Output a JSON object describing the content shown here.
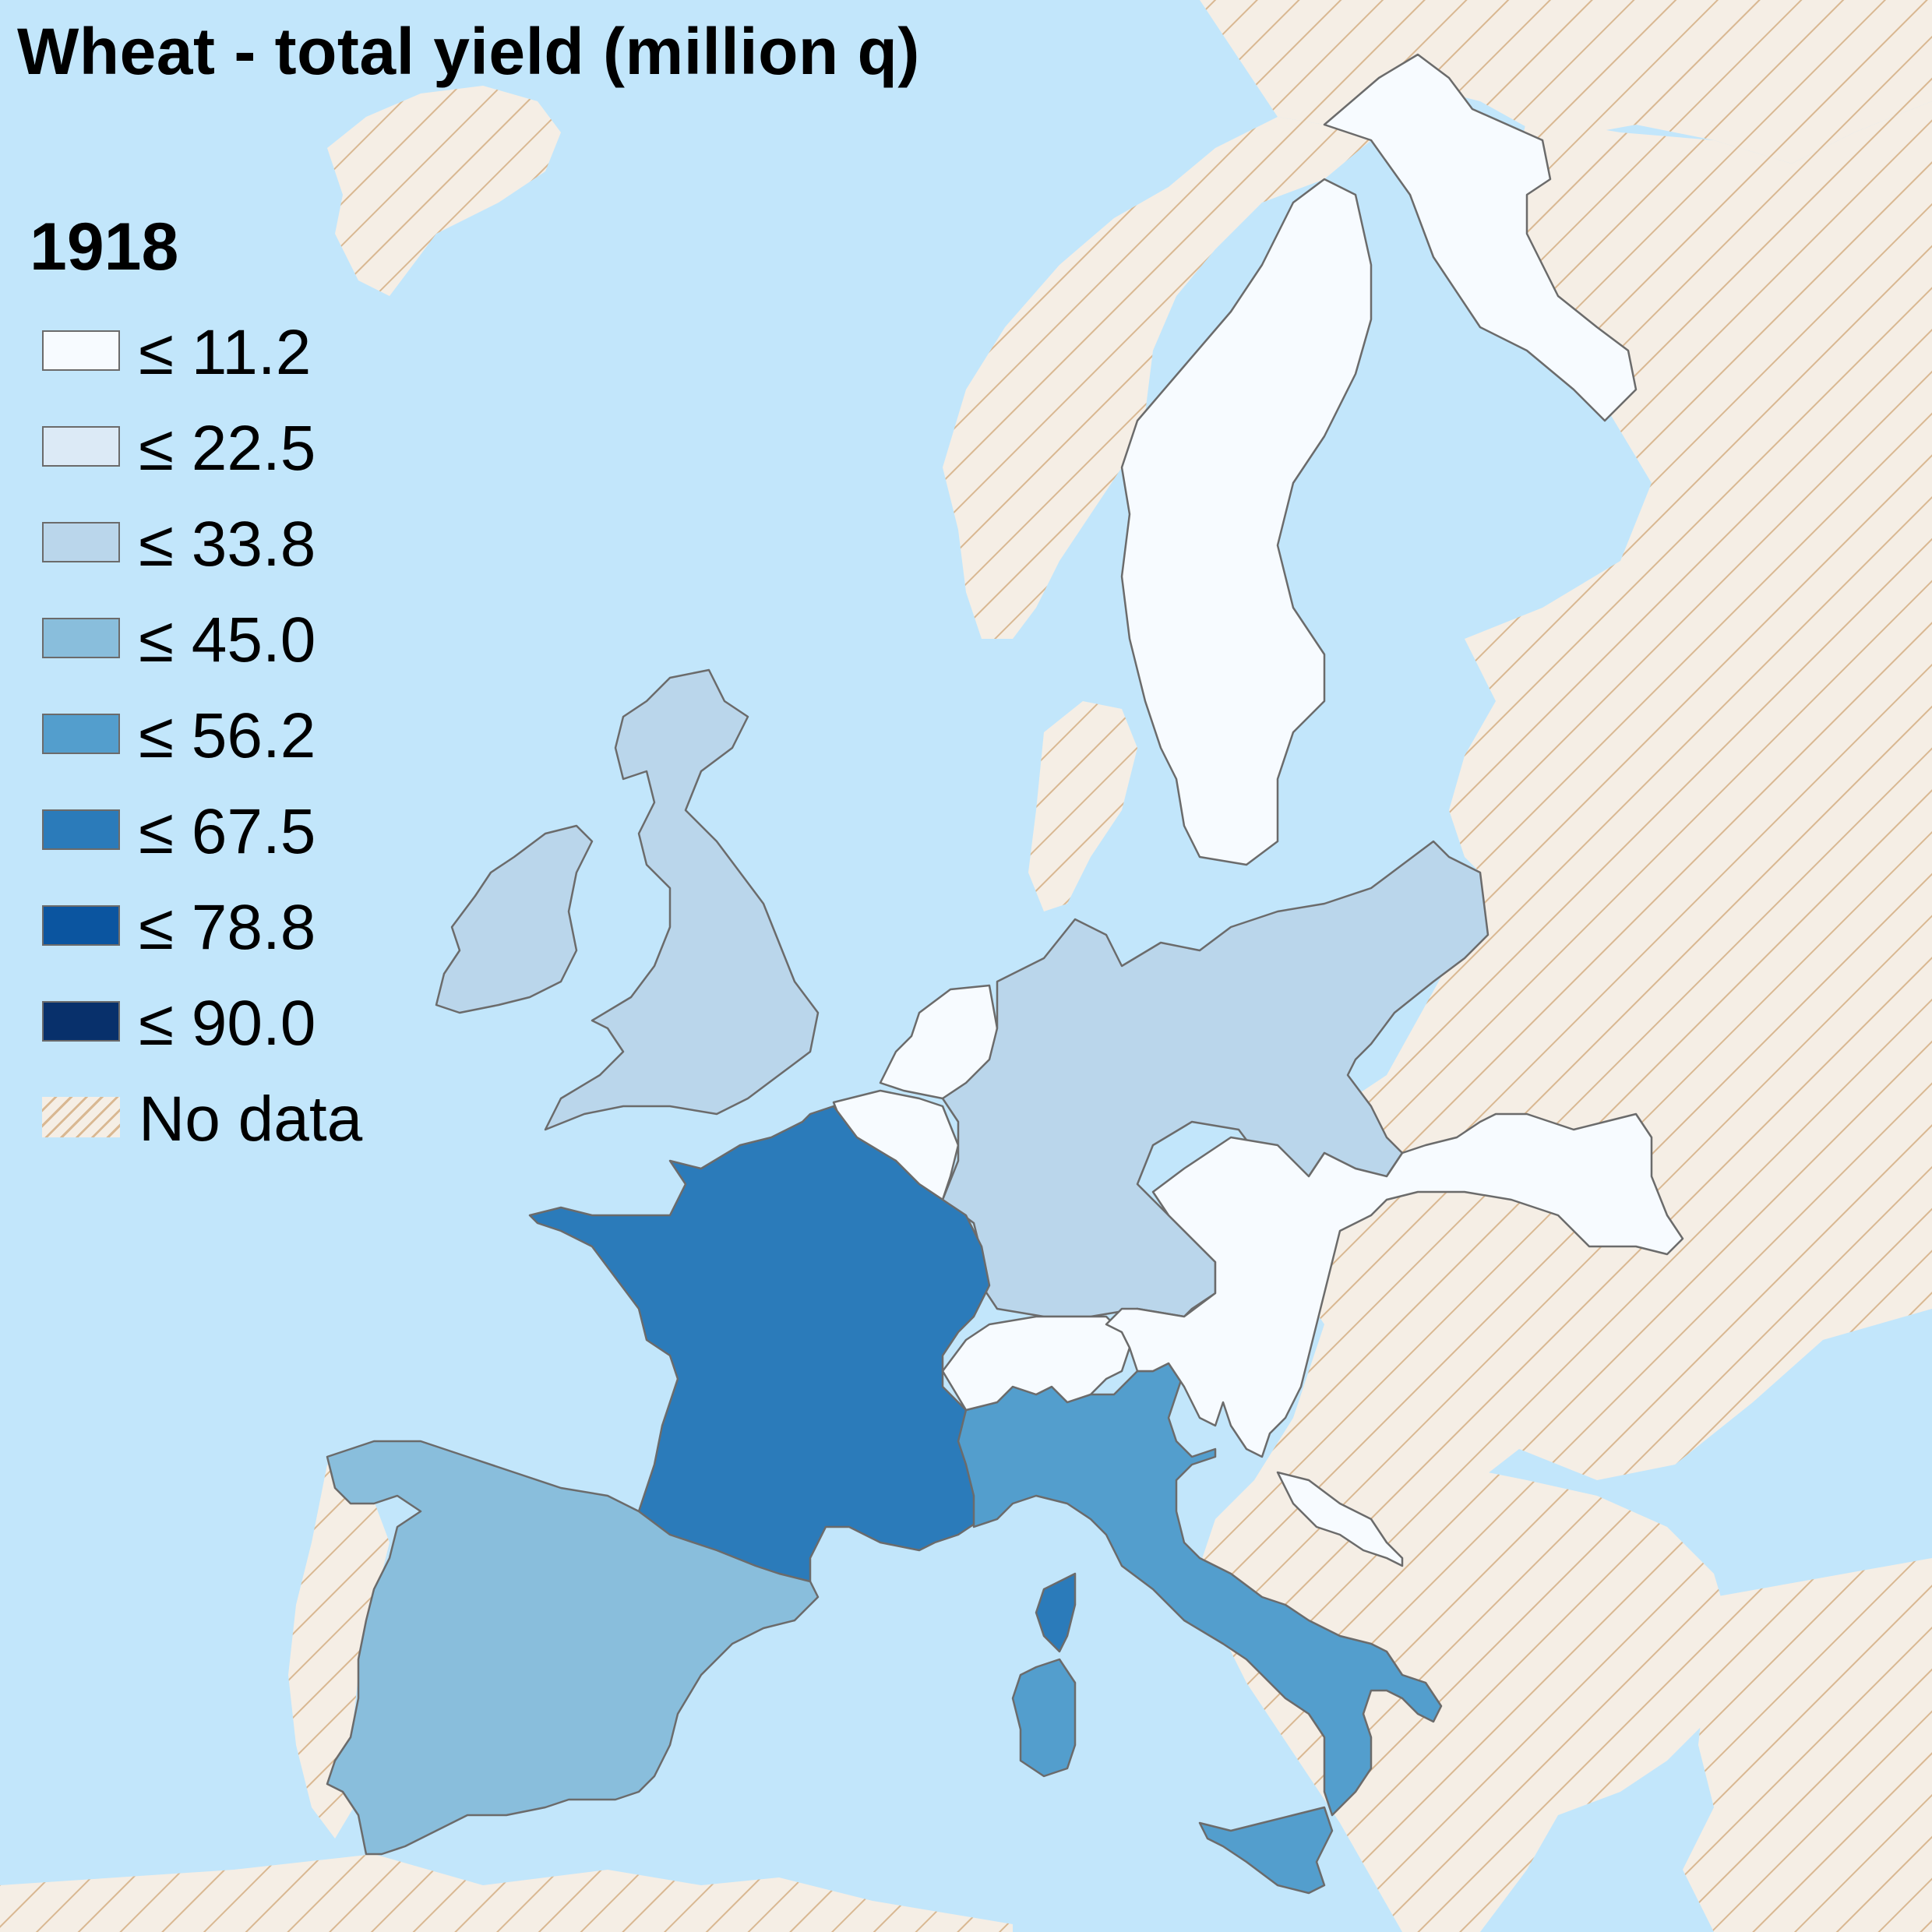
{
  "title": "Wheat - total yield (million q)",
  "year": "1918",
  "colors": {
    "sea": "#c2e6fb",
    "nodata_fill": "#f5eee5",
    "nodata_hatch": "#d9b892",
    "border": "#6b6b6b"
  },
  "legend": [
    {
      "label": "≤ 11.2",
      "color": "#f7fbff"
    },
    {
      "label": "≤ 22.5",
      "color": "#dceaf6"
    },
    {
      "label": "≤ 33.8",
      "color": "#bad6eb"
    },
    {
      "label": "≤ 45.0",
      "color": "#89bedc"
    },
    {
      "label": "≤ 56.2",
      "color": "#539ecd"
    },
    {
      "label": "≤ 67.5",
      "color": "#2b7bba"
    },
    {
      "label": "≤ 78.8",
      "color": "#0b55a0"
    },
    {
      "label": "≤ 90.0",
      "color": "#08306b"
    },
    {
      "label": "No data",
      "color": "hatch"
    }
  ],
  "regions": [
    {
      "name": "Sweden",
      "class_index": 0
    },
    {
      "name": "Norway",
      "class_index": null
    },
    {
      "name": "Finland",
      "class_index": null
    },
    {
      "name": "United Kingdom",
      "class_index": 2
    },
    {
      "name": "Ireland",
      "class_index": 2
    },
    {
      "name": "Netherlands",
      "class_index": 0
    },
    {
      "name": "Belgium",
      "class_index": 0
    },
    {
      "name": "Germany",
      "class_index": 2
    },
    {
      "name": "France",
      "class_index": 5
    },
    {
      "name": "Corsica",
      "class_index": 5
    },
    {
      "name": "Spain",
      "class_index": 3
    },
    {
      "name": "Italy",
      "class_index": 4
    },
    {
      "name": "Sardinia",
      "class_index": 4
    },
    {
      "name": "Sicily",
      "class_index": 4
    },
    {
      "name": "Switzerland",
      "class_index": 0
    },
    {
      "name": "Austria-Hungary",
      "class_index": 0
    },
    {
      "name": "Dalmatia",
      "class_index": 0
    }
  ]
}
